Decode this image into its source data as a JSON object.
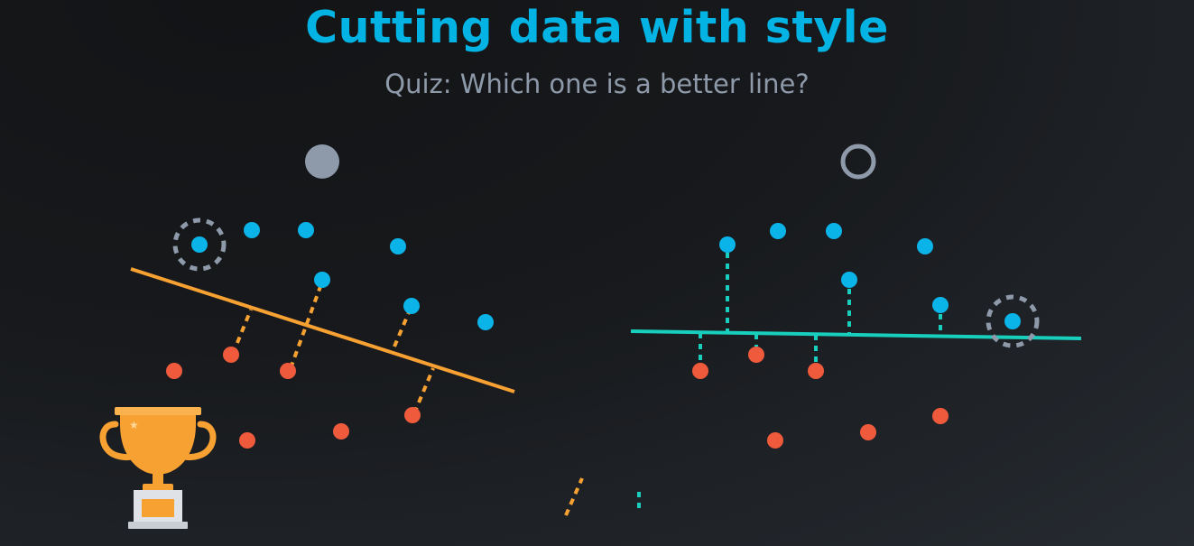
{
  "title": "Cutting data with style",
  "subtitle": "Quiz: Which one is a better line?",
  "colors": {
    "accent_blue": "#02b3e4",
    "point_blue": "#0ab3e8",
    "point_red": "#f05a3c",
    "line_orange": "#f7a133",
    "line_teal": "#18cfbe",
    "option_gray": "#8e9aaa",
    "trophy_gold": "#f7a133"
  },
  "options": [
    {
      "id": "left",
      "selected": true
    },
    {
      "id": "right",
      "selected": false
    }
  ],
  "icons": [
    "radio-selected-icon",
    "radio-empty-icon",
    "trophy-icon"
  ]
}
